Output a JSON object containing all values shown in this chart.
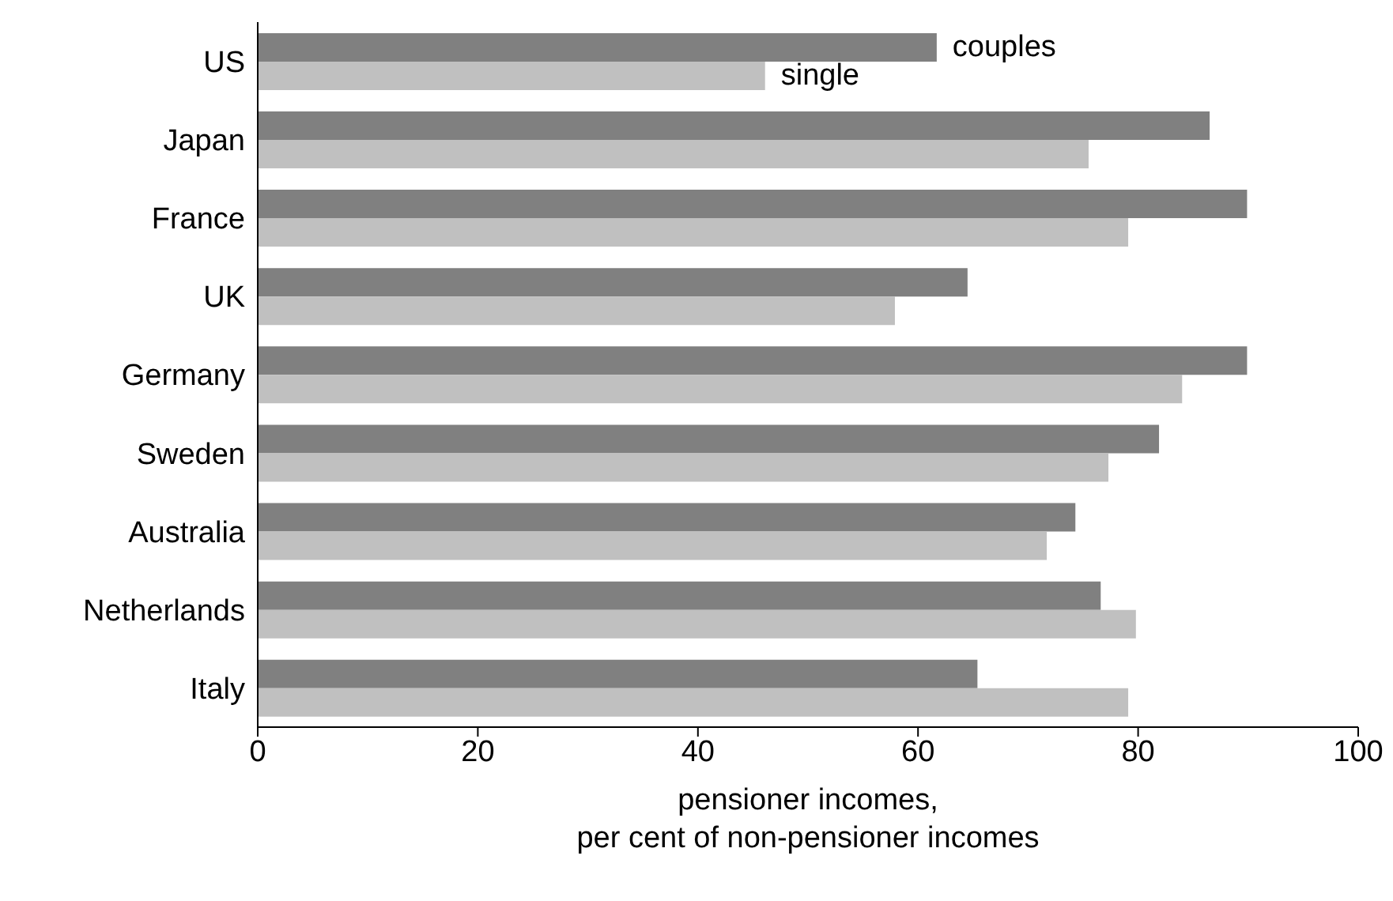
{
  "chart_data": {
    "type": "bar",
    "orientation": "horizontal",
    "xlabel": "pensioner incomes,\nper cent of non-pensioner incomes",
    "categories": [
      "US",
      "Japan",
      "France",
      "UK",
      "Germany",
      "Sweden",
      "Australia",
      "Netherlands",
      "Italy"
    ],
    "series": [
      {
        "name": "couples",
        "color": "#808080",
        "values": [
          61.7,
          86.5,
          89.9,
          64.5,
          89.9,
          81.9,
          74.3,
          76.6,
          65.4
        ]
      },
      {
        "name": "single",
        "color": "#c0c0c0",
        "values": [
          46.1,
          75.5,
          79.1,
          57.9,
          84.0,
          77.3,
          71.7,
          79.8,
          79.1
        ]
      }
    ],
    "xlim": [
      0,
      100
    ],
    "xticks": [
      0,
      20,
      40,
      60,
      80,
      100
    ],
    "grid": false,
    "legend": false
  }
}
